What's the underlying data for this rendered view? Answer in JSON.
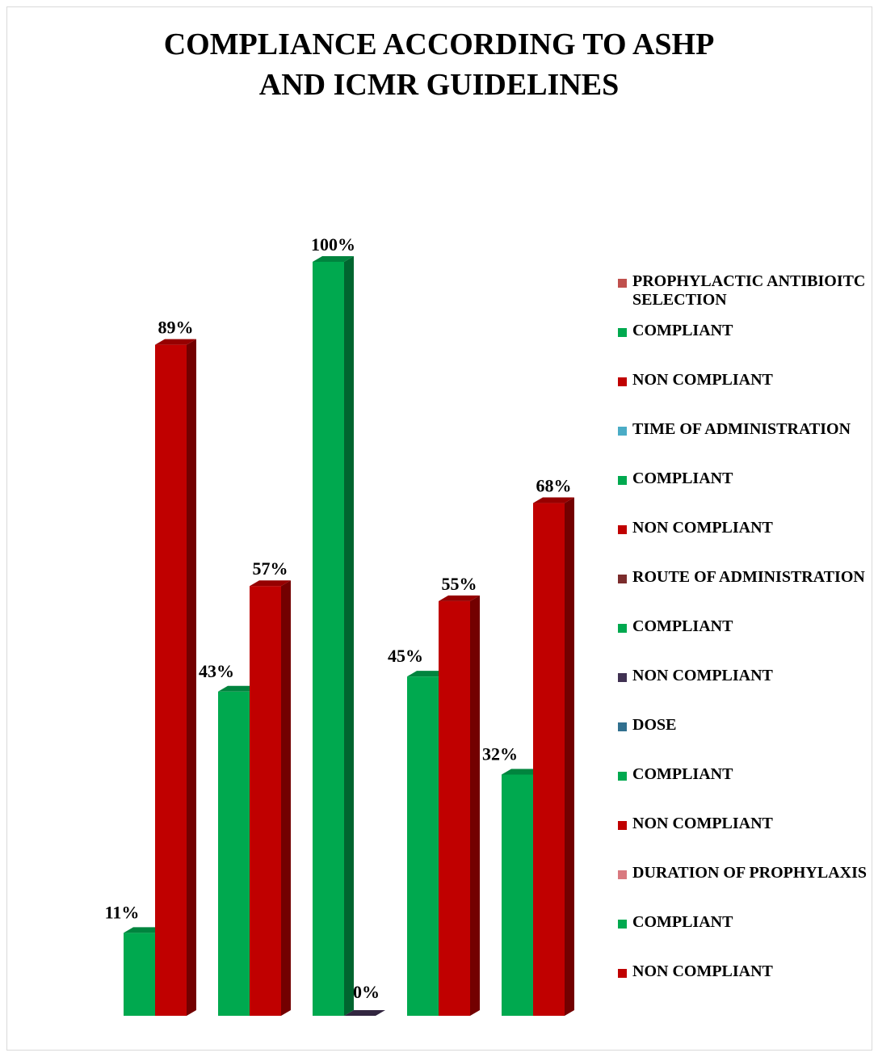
{
  "chart_data": {
    "type": "bar",
    "title": "COMPLIANCE ACCORDING TO ASHP AND ICMR GUIDELINES",
    "title_lines": [
      "COMPLIANCE ACCORDING TO ASHP",
      "AND ICMR GUIDELINES"
    ],
    "ylim": [
      0,
      100
    ],
    "grid": false,
    "legend_position": "right",
    "groups": [
      {
        "name": "PROPHYLACTIC ANTIBIOITC SELECTION",
        "bars": [
          {
            "series": "COMPLIANT",
            "value": 11,
            "label": "11%",
            "color": "#00a94f"
          },
          {
            "series": "NON COMPLIANT",
            "value": 89,
            "label": "89%",
            "color": "#c00000"
          }
        ]
      },
      {
        "name": "TIME OF ADMINISTRATION",
        "bars": [
          {
            "series": "COMPLIANT",
            "value": 43,
            "label": "43%",
            "color": "#00a94f"
          },
          {
            "series": "NON COMPLIANT",
            "value": 57,
            "label": "57%",
            "color": "#c00000"
          }
        ]
      },
      {
        "name": "ROUTE OF ADMINISTRATION",
        "bars": [
          {
            "series": "COMPLIANT",
            "value": 100,
            "label": "100%",
            "color": "#00a94f"
          },
          {
            "series": "NON COMPLIANT",
            "value": 0,
            "label": "0%",
            "color": "#403152"
          }
        ]
      },
      {
        "name": "DOSE",
        "bars": [
          {
            "series": "COMPLIANT",
            "value": 45,
            "label": "45%",
            "color": "#00a94f"
          },
          {
            "series": "NON COMPLIANT",
            "value": 55,
            "label": "55%",
            "color": "#c00000"
          }
        ]
      },
      {
        "name": "DURATION OF PROPHYLAXIS",
        "bars": [
          {
            "series": "COMPLIANT",
            "value": 32,
            "label": "32%",
            "color": "#00a94f"
          },
          {
            "series": "NON COMPLIANT",
            "value": 68,
            "label": "68%",
            "color": "#c00000"
          }
        ]
      }
    ],
    "legend": [
      {
        "label": "PROPHYLACTIC ANTIBIOITC SELECTION",
        "color": "#c0504d"
      },
      {
        "label": "COMPLIANT",
        "color": "#00a94f"
      },
      {
        "label": "NON COMPLIANT",
        "color": "#c00000"
      },
      {
        "label": "TIME OF ADMINISTRATION",
        "color": "#4bacc6"
      },
      {
        "label": "COMPLIANT",
        "color": "#00a94f"
      },
      {
        "label": "NON COMPLIANT",
        "color": "#c00000"
      },
      {
        "label": "ROUTE OF ADMINISTRATION",
        "color": "#7b2c2c"
      },
      {
        "label": "COMPLIANT",
        "color": "#00a94f"
      },
      {
        "label": "NON COMPLIANT",
        "color": "#403152"
      },
      {
        "label": "DOSE",
        "color": "#31708f"
      },
      {
        "label": "COMPLIANT",
        "color": "#00a94f"
      },
      {
        "label": "NON COMPLIANT",
        "color": "#c00000"
      },
      {
        "label": "DURATION OF PROPHYLAXIS",
        "color": "#d9797f"
      },
      {
        "label": "COMPLIANT",
        "color": "#00a94f"
      },
      {
        "label": "NON COMPLIANT",
        "color": "#c00000"
      }
    ]
  }
}
